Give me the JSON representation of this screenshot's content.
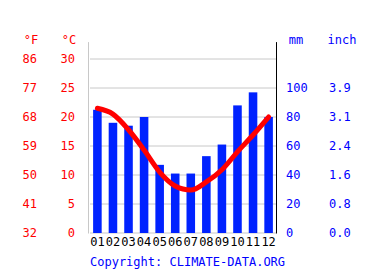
{
  "chart_data": {
    "type": "bar",
    "categories": [
      "01",
      "02",
      "03",
      "04",
      "05",
      "06",
      "07",
      "08",
      "09",
      "10",
      "11",
      "12"
    ],
    "series": [
      {
        "type": "bar",
        "axis": "y2",
        "color": "#0022ff",
        "values": [
          85,
          76,
          74,
          80,
          47,
          41,
          41,
          53,
          61,
          88,
          97,
          80
        ]
      },
      {
        "type": "line",
        "color": "#ff0000",
        "line_style": "solid",
        "values": [
          21.5,
          20.5,
          17.8,
          14.3,
          10.5,
          8.1,
          7.4,
          8.8,
          10.9,
          14.0,
          16.9,
          20.0
        ]
      }
    ],
    "y_label": "°C",
    "ylim": [
      0,
      33
    ],
    "yticks": [
      0,
      5,
      10,
      15,
      20,
      25,
      30
    ],
    "y_alt_label": "°F",
    "y_alt_ticks": [
      {
        "value": 0,
        "label": "32"
      },
      {
        "value": 5,
        "label": "41"
      },
      {
        "value": 10,
        "label": "50"
      },
      {
        "value": 15,
        "label": "59"
      },
      {
        "value": 20,
        "label": "68"
      },
      {
        "value": 25,
        "label": "77"
      },
      {
        "value": 30,
        "label": "86"
      }
    ],
    "y2_label": "mm",
    "y2lim": [
      0,
      132
    ],
    "y2ticks": [
      0,
      20,
      40,
      60,
      80,
      100
    ],
    "y2_alt_label": "inch",
    "y2_alt_ticks": [
      {
        "value": 0,
        "label": "0.0"
      },
      {
        "value": 20,
        "label": "0.8"
      },
      {
        "value": 40,
        "label": "1.6"
      },
      {
        "value": 60,
        "label": "2.4"
      },
      {
        "value": 80,
        "label": "3.1"
      },
      {
        "value": 100,
        "label": "3.9"
      }
    ],
    "grid": true,
    "source": "Copyright: CLIMATE-DATA.ORG"
  }
}
